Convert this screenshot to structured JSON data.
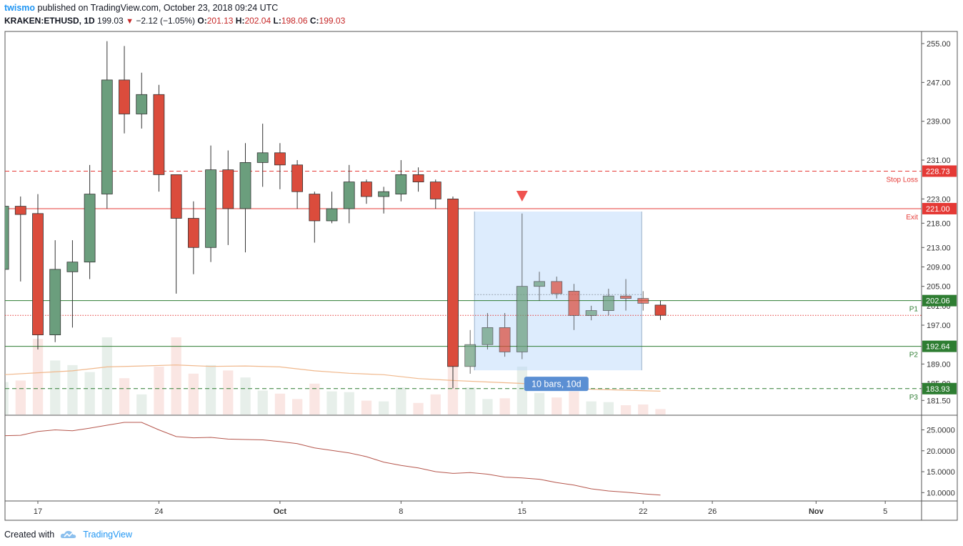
{
  "header": {
    "author": "twismo",
    "published": "published on TradingView.com, October 23, 2018 09:24 UTC",
    "symbol": "KRAKEN:ETHUSD, 1D",
    "last": "199.03",
    "change": "−2.12 (−1.05%)",
    "o_label": "O:",
    "o_value": "201.13",
    "h_label": "H:",
    "h_value": "202.04",
    "l_label": "L:",
    "l_value": "198.06",
    "c_label": "C:",
    "c_value": "199.03"
  },
  "footer": {
    "created_with": "Created with",
    "brand": "TradingView"
  },
  "colors": {
    "up": "#6b9e7d",
    "down": "#db4c3c",
    "stop_line": "#e53935",
    "level_line": "#2e7d32",
    "box_fill": "#d6e8fc",
    "oscillator": "#b5564c",
    "ma": "#f0b88c"
  },
  "chart_data": [
    {
      "type": "candlestick",
      "ylim": [
        178.6,
        257.5
      ],
      "y_ticks": [
        255,
        247,
        239,
        231,
        223,
        218,
        213,
        209,
        205,
        201,
        197,
        189,
        185,
        181.5
      ],
      "y_tick_labels": [
        "255.00",
        "247.00",
        "239.00",
        "231.00",
        "223.00",
        "218.00",
        "213.00",
        "209.00",
        "205.00",
        "201.00",
        "197.00",
        "189.00",
        "185.00",
        "181.50"
      ],
      "x_ticks": [
        {
          "day": 17,
          "label": "17"
        },
        {
          "day": 24,
          "label": "24"
        },
        {
          "day": 31,
          "label": "Oct"
        },
        {
          "day": 38,
          "label": "8"
        },
        {
          "day": 45,
          "label": "15"
        },
        {
          "day": 52,
          "label": "22"
        },
        {
          "day": 56,
          "label": "26"
        },
        {
          "day": 62,
          "label": "Nov"
        },
        {
          "day": 66,
          "label": "5"
        }
      ],
      "x_domain": [
        15.1,
        68.1
      ],
      "candles": [
        {
          "day": 15,
          "o": 208.5,
          "h": 222.0,
          "l": 208.0,
          "c": 221.5
        },
        {
          "day": 16,
          "o": 221.5,
          "h": 223.5,
          "l": 206.0,
          "c": 219.8
        },
        {
          "day": 17,
          "o": 220.0,
          "h": 224.0,
          "l": 192.0,
          "c": 195.0
        },
        {
          "day": 18,
          "o": 195.0,
          "h": 214.5,
          "l": 193.5,
          "c": 208.5
        },
        {
          "day": 19,
          "o": 208.0,
          "h": 214.5,
          "l": 196.5,
          "c": 210.0
        },
        {
          "day": 20,
          "o": 210.0,
          "h": 230.0,
          "l": 206.5,
          "c": 224.0
        },
        {
          "day": 21,
          "o": 224.0,
          "h": 255.5,
          "l": 221.0,
          "c": 247.5
        },
        {
          "day": 22,
          "o": 247.5,
          "h": 254.5,
          "l": 236.5,
          "c": 240.5
        },
        {
          "day": 23,
          "o": 240.5,
          "h": 249.0,
          "l": 237.5,
          "c": 244.5
        },
        {
          "day": 24,
          "o": 244.5,
          "h": 246.5,
          "l": 224.5,
          "c": 228.0
        },
        {
          "day": 25,
          "o": 228.0,
          "h": 228.0,
          "l": 203.5,
          "c": 219.0
        },
        {
          "day": 26,
          "o": 219.0,
          "h": 222.5,
          "l": 207.5,
          "c": 213.0
        },
        {
          "day": 27,
          "o": 213.0,
          "h": 234.0,
          "l": 210.0,
          "c": 229.0
        },
        {
          "day": 28,
          "o": 229.0,
          "h": 233.0,
          "l": 213.5,
          "c": 221.0
        },
        {
          "day": 29,
          "o": 221.0,
          "h": 234.5,
          "l": 212.0,
          "c": 230.5
        },
        {
          "day": 30,
          "o": 230.5,
          "h": 238.5,
          "l": 225.5,
          "c": 232.5
        },
        {
          "day": 31,
          "o": 232.5,
          "h": 234.5,
          "l": 225.0,
          "c": 230.0
        },
        {
          "day": 32,
          "o": 230.0,
          "h": 231.0,
          "l": 221.0,
          "c": 224.5
        },
        {
          "day": 33,
          "o": 224.0,
          "h": 224.5,
          "l": 214.0,
          "c": 218.5
        },
        {
          "day": 34,
          "o": 218.5,
          "h": 224.5,
          "l": 218.0,
          "c": 221.0
        },
        {
          "day": 35,
          "o": 221.0,
          "h": 230.0,
          "l": 218.0,
          "c": 226.5
        },
        {
          "day": 36,
          "o": 226.5,
          "h": 227.0,
          "l": 222.0,
          "c": 223.5
        },
        {
          "day": 37,
          "o": 223.5,
          "h": 225.5,
          "l": 220.0,
          "c": 224.5
        },
        {
          "day": 38,
          "o": 224.0,
          "h": 231.0,
          "l": 222.5,
          "c": 228.0
        },
        {
          "day": 39,
          "o": 228.0,
          "h": 229.5,
          "l": 224.5,
          "c": 226.5
        },
        {
          "day": 40,
          "o": 226.5,
          "h": 227.0,
          "l": 221.0,
          "c": 223.0
        },
        {
          "day": 41,
          "o": 223.0,
          "h": 223.5,
          "l": 184.0,
          "c": 188.5
        },
        {
          "day": 42,
          "o": 188.5,
          "h": 196.0,
          "l": 187.0,
          "c": 193.0
        },
        {
          "day": 43,
          "o": 193.0,
          "h": 199.5,
          "l": 192.0,
          "c": 196.5
        },
        {
          "day": 44,
          "o": 196.5,
          "h": 199.5,
          "l": 190.5,
          "c": 191.5
        },
        {
          "day": 45,
          "o": 191.5,
          "h": 220.0,
          "l": 190.0,
          "c": 205.0
        },
        {
          "day": 46,
          "o": 205.0,
          "h": 208.0,
          "l": 202.0,
          "c": 206.0
        },
        {
          "day": 47,
          "o": 206.0,
          "h": 207.0,
          "l": 202.5,
          "c": 203.5
        },
        {
          "day": 48,
          "o": 204.0,
          "h": 205.5,
          "l": 196.0,
          "c": 199.0
        },
        {
          "day": 49,
          "o": 199.0,
          "h": 201.0,
          "l": 198.0,
          "c": 200.0
        },
        {
          "day": 50,
          "o": 200.0,
          "h": 204.5,
          "l": 199.0,
          "c": 203.0
        },
        {
          "day": 51,
          "o": 203.0,
          "h": 206.5,
          "l": 200.0,
          "c": 202.5
        },
        {
          "day": 52,
          "o": 202.5,
          "h": 204.0,
          "l": 200.0,
          "c": 201.5
        },
        {
          "day": 53,
          "o": 201.13,
          "h": 202.04,
          "l": 198.06,
          "c": 199.03
        }
      ],
      "volumes": [
        {
          "day": 15,
          "v": 0.42,
          "up": true
        },
        {
          "day": 16,
          "v": 0.44,
          "up": false
        },
        {
          "day": 17,
          "v": 0.98,
          "up": false
        },
        {
          "day": 18,
          "v": 0.7,
          "up": true
        },
        {
          "day": 19,
          "v": 0.64,
          "up": true
        },
        {
          "day": 20,
          "v": 0.55,
          "up": true
        },
        {
          "day": 21,
          "v": 1.0,
          "up": true
        },
        {
          "day": 22,
          "v": 0.47,
          "up": false
        },
        {
          "day": 23,
          "v": 0.26,
          "up": true
        },
        {
          "day": 24,
          "v": 0.62,
          "up": false
        },
        {
          "day": 25,
          "v": 1.0,
          "up": false
        },
        {
          "day": 26,
          "v": 0.53,
          "up": false
        },
        {
          "day": 27,
          "v": 0.64,
          "up": true
        },
        {
          "day": 28,
          "v": 0.57,
          "up": false
        },
        {
          "day": 29,
          "v": 0.48,
          "up": true
        },
        {
          "day": 30,
          "v": 0.31,
          "up": true
        },
        {
          "day": 31,
          "v": 0.27,
          "up": false
        },
        {
          "day": 32,
          "v": 0.2,
          "up": false
        },
        {
          "day": 33,
          "v": 0.4,
          "up": false
        },
        {
          "day": 34,
          "v": 0.3,
          "up": true
        },
        {
          "day": 35,
          "v": 0.29,
          "up": true
        },
        {
          "day": 36,
          "v": 0.18,
          "up": false
        },
        {
          "day": 37,
          "v": 0.17,
          "up": true
        },
        {
          "day": 38,
          "v": 0.35,
          "up": true
        },
        {
          "day": 39,
          "v": 0.15,
          "up": false
        },
        {
          "day": 40,
          "v": 0.26,
          "up": false
        },
        {
          "day": 41,
          "v": 0.98,
          "up": false
        },
        {
          "day": 42,
          "v": 0.35,
          "up": true
        },
        {
          "day": 43,
          "v": 0.2,
          "up": true
        },
        {
          "day": 44,
          "v": 0.21,
          "up": false
        },
        {
          "day": 45,
          "v": 0.62,
          "up": true
        },
        {
          "day": 46,
          "v": 0.28,
          "up": true
        },
        {
          "day": 47,
          "v": 0.22,
          "up": false
        },
        {
          "day": 48,
          "v": 0.3,
          "up": false
        },
        {
          "day": 49,
          "v": 0.17,
          "up": true
        },
        {
          "day": 50,
          "v": 0.16,
          "up": true
        },
        {
          "day": 51,
          "v": 0.12,
          "up": false
        },
        {
          "day": 52,
          "v": 0.13,
          "up": false
        },
        {
          "day": 53,
          "v": 0.07,
          "up": false
        }
      ],
      "ma": [
        {
          "day": 15,
          "y": 186.8
        },
        {
          "day": 17,
          "y": 187.2
        },
        {
          "day": 19,
          "y": 187.6
        },
        {
          "day": 21,
          "y": 188.4
        },
        {
          "day": 23,
          "y": 188.6
        },
        {
          "day": 25,
          "y": 188.8
        },
        {
          "day": 27,
          "y": 188.5
        },
        {
          "day": 29,
          "y": 188.6
        },
        {
          "day": 31,
          "y": 188.4
        },
        {
          "day": 33,
          "y": 187.6
        },
        {
          "day": 35,
          "y": 187.1
        },
        {
          "day": 37,
          "y": 186.8
        },
        {
          "day": 39,
          "y": 186.0
        },
        {
          "day": 41,
          "y": 185.6
        },
        {
          "day": 43,
          "y": 185.3
        },
        {
          "day": 45,
          "y": 185.0
        },
        {
          "day": 47,
          "y": 184.4
        },
        {
          "day": 49,
          "y": 183.8
        },
        {
          "day": 51,
          "y": 183.6
        },
        {
          "day": 53,
          "y": 183.4
        }
      ],
      "levels": [
        {
          "name": "Stop Loss",
          "value": 228.73,
          "label": "228.73",
          "style": "dashed",
          "color": "#e53935"
        },
        {
          "name": "Exit",
          "value": 221.0,
          "label": "221.00",
          "style": "solid",
          "color": "#e53935"
        },
        {
          "name": "P1",
          "value": 202.06,
          "label": "202.06",
          "style": "solid",
          "color": "#2e7d32"
        },
        {
          "name": "P2",
          "value": 192.64,
          "label": "192.64",
          "style": "solid",
          "color": "#2e7d32"
        },
        {
          "name": "P3",
          "value": 183.93,
          "label": "183.93",
          "style": "dashed",
          "color": "#2e7d32"
        }
      ],
      "price_dotted": 199.03,
      "range_box": {
        "day_start": 42,
        "day_end": 52,
        "top": 220.4,
        "bottom": 187.7,
        "mid_dotted": 203.3,
        "label": "10 bars, 10d"
      },
      "arrow_marker": {
        "day": 45,
        "value": 223.5
      }
    },
    {
      "type": "line",
      "ylim": [
        8.0,
        28.5
      ],
      "y_ticks": [
        25,
        20,
        15,
        10
      ],
      "y_tick_labels": [
        "25.0000",
        "20.0000",
        "15.0000",
        "10.0000"
      ],
      "points": [
        {
          "day": 15,
          "y": 23.6
        },
        {
          "day": 16,
          "y": 23.7
        },
        {
          "day": 17,
          "y": 24.6
        },
        {
          "day": 18,
          "y": 25.0
        },
        {
          "day": 19,
          "y": 24.8
        },
        {
          "day": 20,
          "y": 25.4
        },
        {
          "day": 21,
          "y": 26.1
        },
        {
          "day": 22,
          "y": 26.8
        },
        {
          "day": 23,
          "y": 26.8
        },
        {
          "day": 24,
          "y": 25.0
        },
        {
          "day": 25,
          "y": 23.4
        },
        {
          "day": 26,
          "y": 23.1
        },
        {
          "day": 27,
          "y": 23.2
        },
        {
          "day": 28,
          "y": 22.8
        },
        {
          "day": 29,
          "y": 22.7
        },
        {
          "day": 30,
          "y": 22.6
        },
        {
          "day": 31,
          "y": 22.2
        },
        {
          "day": 32,
          "y": 21.7
        },
        {
          "day": 33,
          "y": 20.7
        },
        {
          "day": 34,
          "y": 20.1
        },
        {
          "day": 35,
          "y": 19.5
        },
        {
          "day": 36,
          "y": 18.6
        },
        {
          "day": 37,
          "y": 17.3
        },
        {
          "day": 38,
          "y": 16.5
        },
        {
          "day": 39,
          "y": 15.9
        },
        {
          "day": 40,
          "y": 15.0
        },
        {
          "day": 41,
          "y": 14.6
        },
        {
          "day": 42,
          "y": 14.8
        },
        {
          "day": 43,
          "y": 14.4
        },
        {
          "day": 44,
          "y": 13.7
        },
        {
          "day": 45,
          "y": 13.5
        },
        {
          "day": 46,
          "y": 13.2
        },
        {
          "day": 47,
          "y": 12.4
        },
        {
          "day": 48,
          "y": 11.8
        },
        {
          "day": 49,
          "y": 10.9
        },
        {
          "day": 50,
          "y": 10.4
        },
        {
          "day": 51,
          "y": 10.1
        },
        {
          "day": 52,
          "y": 9.7
        },
        {
          "day": 53,
          "y": 9.4
        }
      ]
    }
  ]
}
